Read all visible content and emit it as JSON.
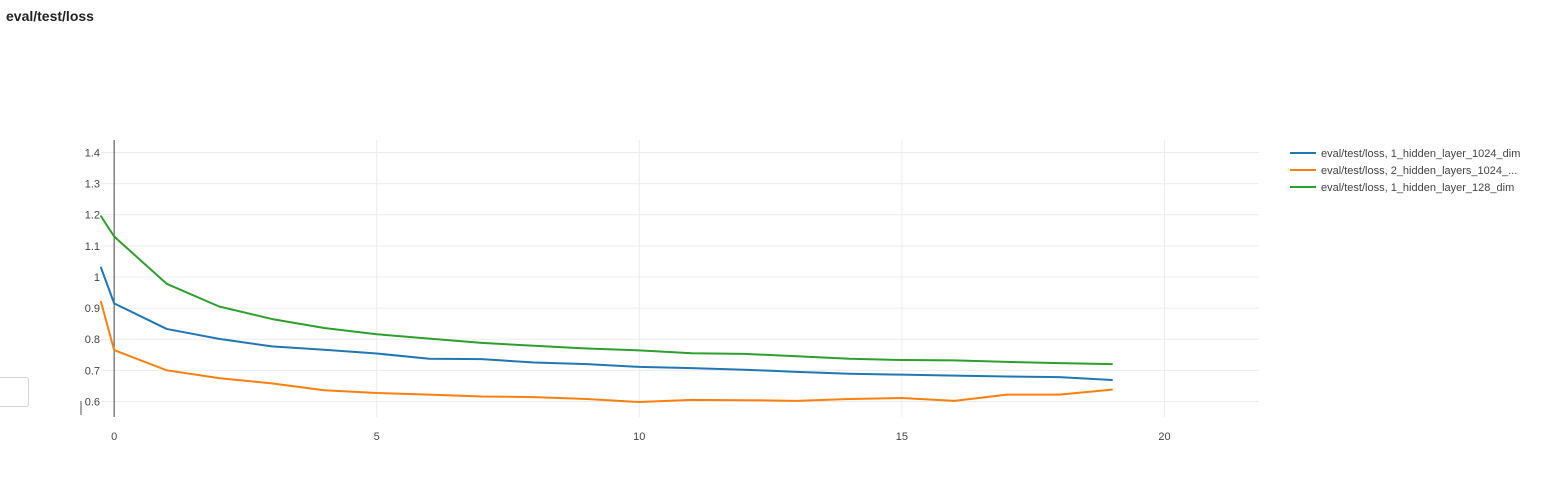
{
  "page": {
    "title": "eval/test/loss"
  },
  "chart_data": {
    "type": "line",
    "title": "eval/test/loss",
    "xlabel": "",
    "ylabel": "",
    "xlim": [
      -0.25,
      21.8
    ],
    "ylim": [
      0.55,
      1.44
    ],
    "x_ticks": [
      0,
      5,
      10,
      15,
      20
    ],
    "y_ticks": [
      0.6,
      0.7,
      0.8,
      0.9,
      1,
      1.1,
      1.2,
      1.3,
      1.4
    ],
    "grid": true,
    "legend_position": "top-right",
    "x": [
      -0.25,
      0,
      1,
      2,
      3,
      4,
      5,
      6,
      7,
      8,
      9,
      10,
      11,
      12,
      13,
      14,
      15,
      16,
      17,
      18,
      19
    ],
    "series": [
      {
        "name": "eval/test/loss, 1_hidden_layer_1024_dim",
        "color": "#1f77b4",
        "values": [
          1.03,
          0.915,
          0.833,
          0.801,
          0.777,
          0.766,
          0.754,
          0.737,
          0.736,
          0.725,
          0.72,
          0.711,
          0.707,
          0.702,
          0.695,
          0.689,
          0.686,
          0.683,
          0.68,
          0.678,
          0.669
        ]
      },
      {
        "name": "eval/test/loss, 2_hidden_layers_1024_...",
        "color": "#ff7f0e",
        "values": [
          0.92,
          0.765,
          0.7,
          0.675,
          0.658,
          0.636,
          0.627,
          0.622,
          0.616,
          0.614,
          0.608,
          0.598,
          0.605,
          0.604,
          0.602,
          0.608,
          0.611,
          0.602,
          0.622,
          0.622,
          0.638
        ]
      },
      {
        "name": "eval/test/loss, 1_hidden_layer_128_dim",
        "color": "#2ca02c",
        "values": [
          1.195,
          1.13,
          0.978,
          0.905,
          0.865,
          0.836,
          0.816,
          0.802,
          0.788,
          0.779,
          0.77,
          0.764,
          0.755,
          0.753,
          0.745,
          0.737,
          0.733,
          0.732,
          0.727,
          0.723,
          0.72
        ]
      }
    ]
  }
}
